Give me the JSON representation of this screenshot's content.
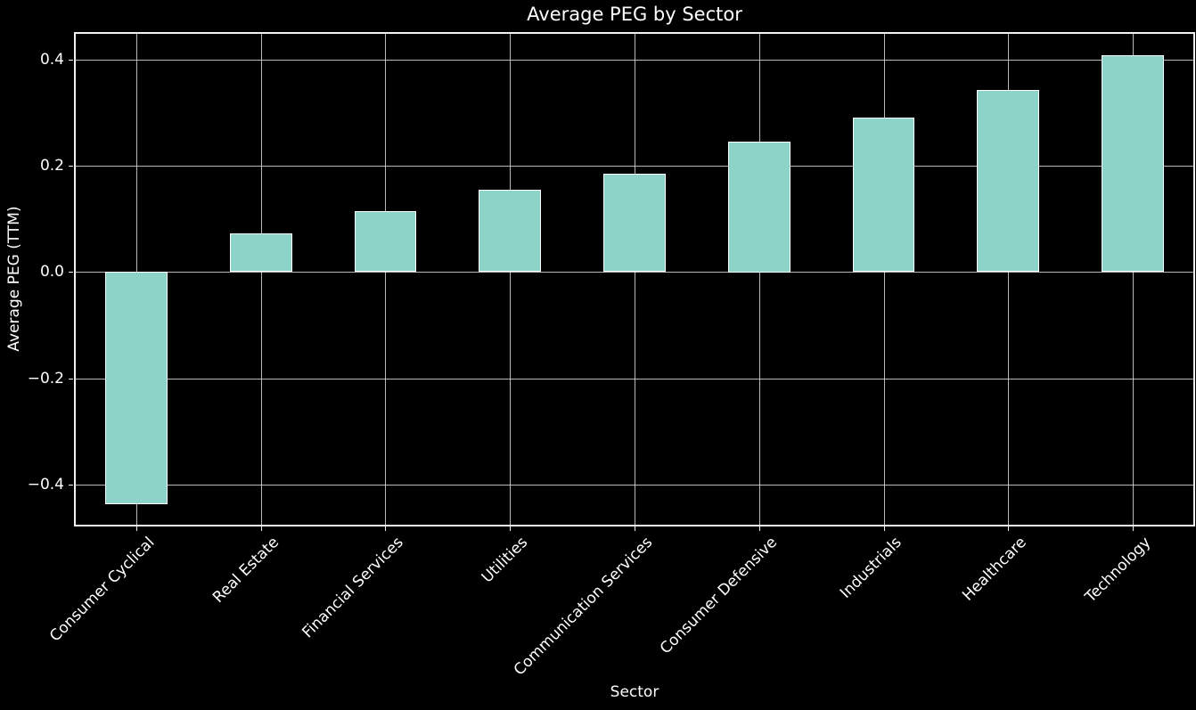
{
  "chart_data": {
    "type": "bar",
    "title": "Average PEG by Sector",
    "xlabel": "Sector",
    "ylabel": "Average PEG (TTM)",
    "categories": [
      "Consumer Cyclical",
      "Real Estate",
      "Financial Services",
      "Utilities",
      "Communication Services",
      "Consumer Defensive",
      "Industrials",
      "Healthcare",
      "Technology"
    ],
    "values": [
      -0.436,
      0.073,
      0.115,
      0.155,
      0.185,
      0.246,
      0.291,
      0.342,
      0.407
    ],
    "ylim": [
      -0.478,
      0.451
    ],
    "yticks": [
      {
        "value": -0.4,
        "label": "−0.4"
      },
      {
        "value": -0.2,
        "label": "−0.2"
      },
      {
        "value": 0.0,
        "label": "0.0"
      },
      {
        "value": 0.2,
        "label": "0.2"
      },
      {
        "value": 0.4,
        "label": "0.4"
      }
    ],
    "grid": true,
    "legend": "none",
    "colors": {
      "background": "#000000",
      "bar_fill": "#8dd3c7",
      "bar_edge": "#ffffff",
      "grid": "#b8b8b8",
      "spine": "#f2f2f2",
      "text": "#ffffff"
    }
  }
}
